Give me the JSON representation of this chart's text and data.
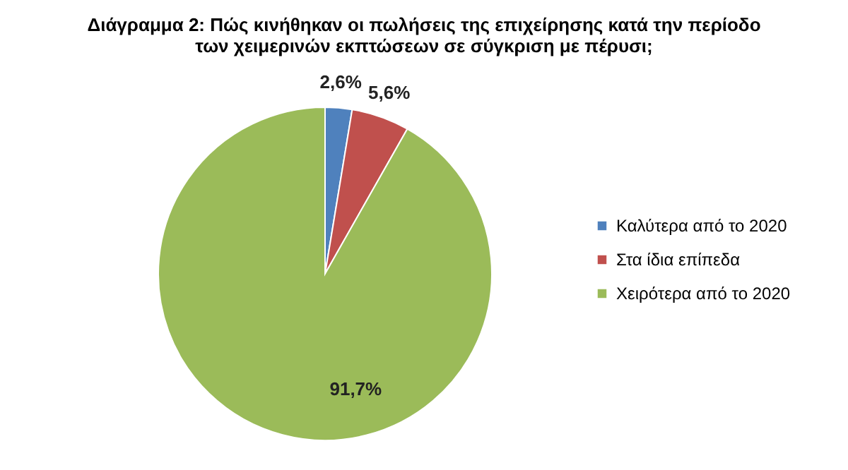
{
  "chart_data": {
    "type": "pie",
    "title": [
      "Διάγραμμα 2: Πώς κινήθηκαν οι πωλήσεις της επιχείρησης κατά την περίοδο",
      "των χειμερινών εκπτώσεων σε σύγκριση με πέρυσι;"
    ],
    "categories": [
      "Καλύτερα από το 2020",
      "Στα ίδια επίπεδα",
      "Χειρότερα από το 2020"
    ],
    "values": [
      2.6,
      5.6,
      91.7
    ],
    "colors": [
      "#4f81bd",
      "#c0504d",
      "#9bbb59"
    ],
    "value_labels": [
      "2,6%",
      "5,6%",
      "91,7%"
    ],
    "legend": "right"
  }
}
